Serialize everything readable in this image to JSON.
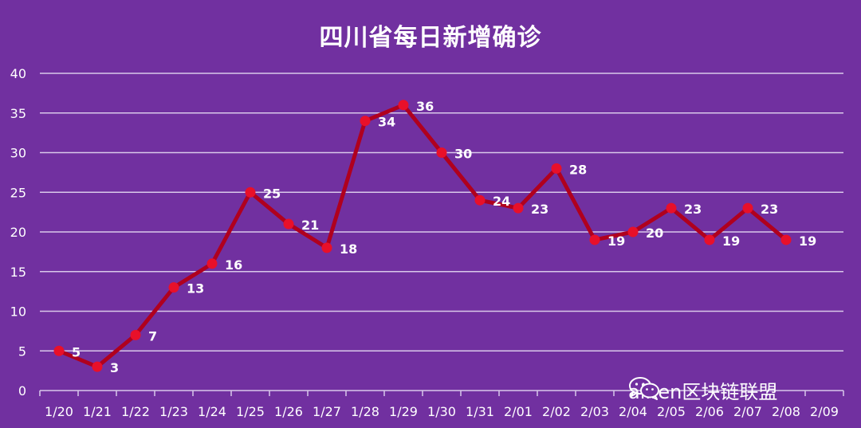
{
  "chart_data": {
    "type": "line",
    "title": "四川省每日新增确诊",
    "categories": [
      "1/20",
      "1/21",
      "1/22",
      "1/23",
      "1/24",
      "1/25",
      "1/26",
      "1/27",
      "1/28",
      "1/29",
      "1/30",
      "1/31",
      "2/01",
      "2/02",
      "2/03",
      "2/04",
      "2/05",
      "2/06",
      "2/07",
      "2/08",
      "2/09"
    ],
    "values": [
      5,
      3,
      7,
      13,
      16,
      25,
      21,
      18,
      34,
      36,
      30,
      24,
      23,
      28,
      19,
      20,
      23,
      19,
      23,
      19,
      null
    ],
    "ylim": [
      0,
      40
    ],
    "yticks": [
      "0",
      "5",
      "10",
      "15",
      "20",
      "25",
      "30",
      "35",
      "40"
    ],
    "data_labels": true,
    "grid": true,
    "line_color": "#B0001E",
    "marker_color": "#E8102A",
    "background_color": "#7130A0"
  },
  "watermark": {
    "text": "aliren区块链联盟",
    "icon": "wechat-icon"
  }
}
